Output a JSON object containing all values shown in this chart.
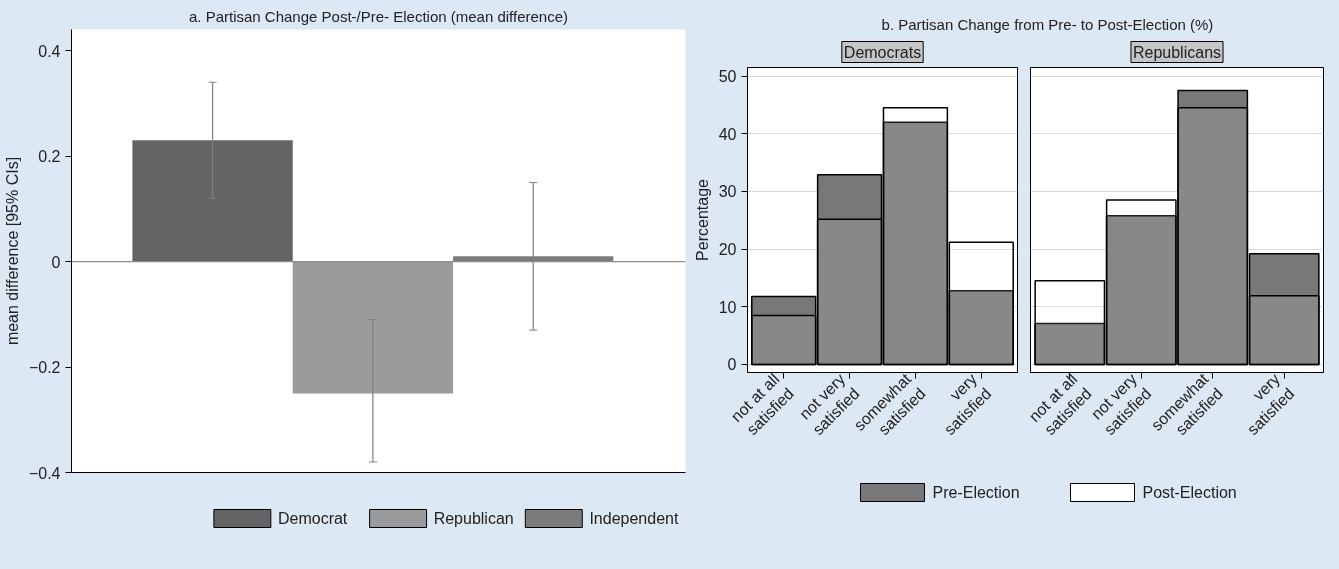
{
  "chart_data": [
    {
      "type": "bar",
      "title": "a. Partisan Change Post-/Pre- Election (mean difference)",
      "ylabel": "mean difference [95% CIs]",
      "categories": [
        null,
        null,
        null
      ],
      "series": [
        {
          "name": "Democrat",
          "color": "#636466",
          "values": [
            0.23,
            null,
            null
          ],
          "errors": [
            [
              0.12,
              0.34
            ],
            null,
            null
          ]
        },
        {
          "name": "Republican",
          "color": "#9a9b9d",
          "values": [
            null,
            -0.25,
            null
          ],
          "errors": [
            null,
            [
              -0.38,
              -0.11
            ],
            null
          ]
        },
        {
          "name": "Independent",
          "color": "#7b7c7e",
          "values": [
            null,
            null,
            0.01
          ],
          "errors": [
            null,
            null,
            [
              -0.13,
              0.15
            ]
          ]
        }
      ],
      "ylim": [
        -0.4,
        0.44
      ],
      "yticks": [
        {
          "value": -0.4,
          "label": "−0.4"
        },
        {
          "value": -0.2,
          "label": "−0.2"
        },
        0,
        0.2,
        0.4
      ],
      "ref_lines": [
        {
          "axis": "y",
          "value": 0,
          "color": "#8c8c8c"
        }
      ],
      "legend": "bottom"
    },
    {
      "type": "bar",
      "title": "b. Partisan Change from Pre- to Post-Election (%)",
      "subtitle": "Democrats",
      "ylabel": "Percentage",
      "categories": [
        "not at all\nsatisfied",
        "not very\nsatisfied",
        "somewhat\nsatisfied",
        "very\nsatisfied"
      ],
      "series": [
        {
          "name": "Pre-Election",
          "color": "#77787a",
          "values": [
            11.8,
            32.9,
            42.0,
            12.8
          ]
        },
        {
          "name": "Post-Election",
          "color": "#ffffff",
          "values": [
            8.5,
            25.2,
            44.5,
            21.2
          ]
        }
      ],
      "ylim": [
        -1.4,
        51.5
      ],
      "yticks": [
        0,
        10,
        20,
        30,
        40,
        50
      ],
      "grid": "y",
      "legend": "bottom"
    },
    {
      "type": "bar",
      "subtitle": "Republicans",
      "categories": [
        "not at all\nsatisfied",
        "not very\nsatisfied",
        "somewhat\nsatisfied",
        "very\nsatisfied"
      ],
      "series": [
        {
          "color": "#77787a",
          "values": [
            7.1,
            25.8,
            47.5,
            19.2
          ]
        },
        {
          "color": "#ffffff",
          "values": [
            14.5,
            28.5,
            44.5,
            11.9
          ]
        }
      ],
      "ylim": [
        -1.4,
        51.5
      ],
      "yticks": [
        0,
        10,
        20,
        30,
        40,
        50
      ],
      "grid": "y",
      "tick_labels": "x"
    }
  ]
}
